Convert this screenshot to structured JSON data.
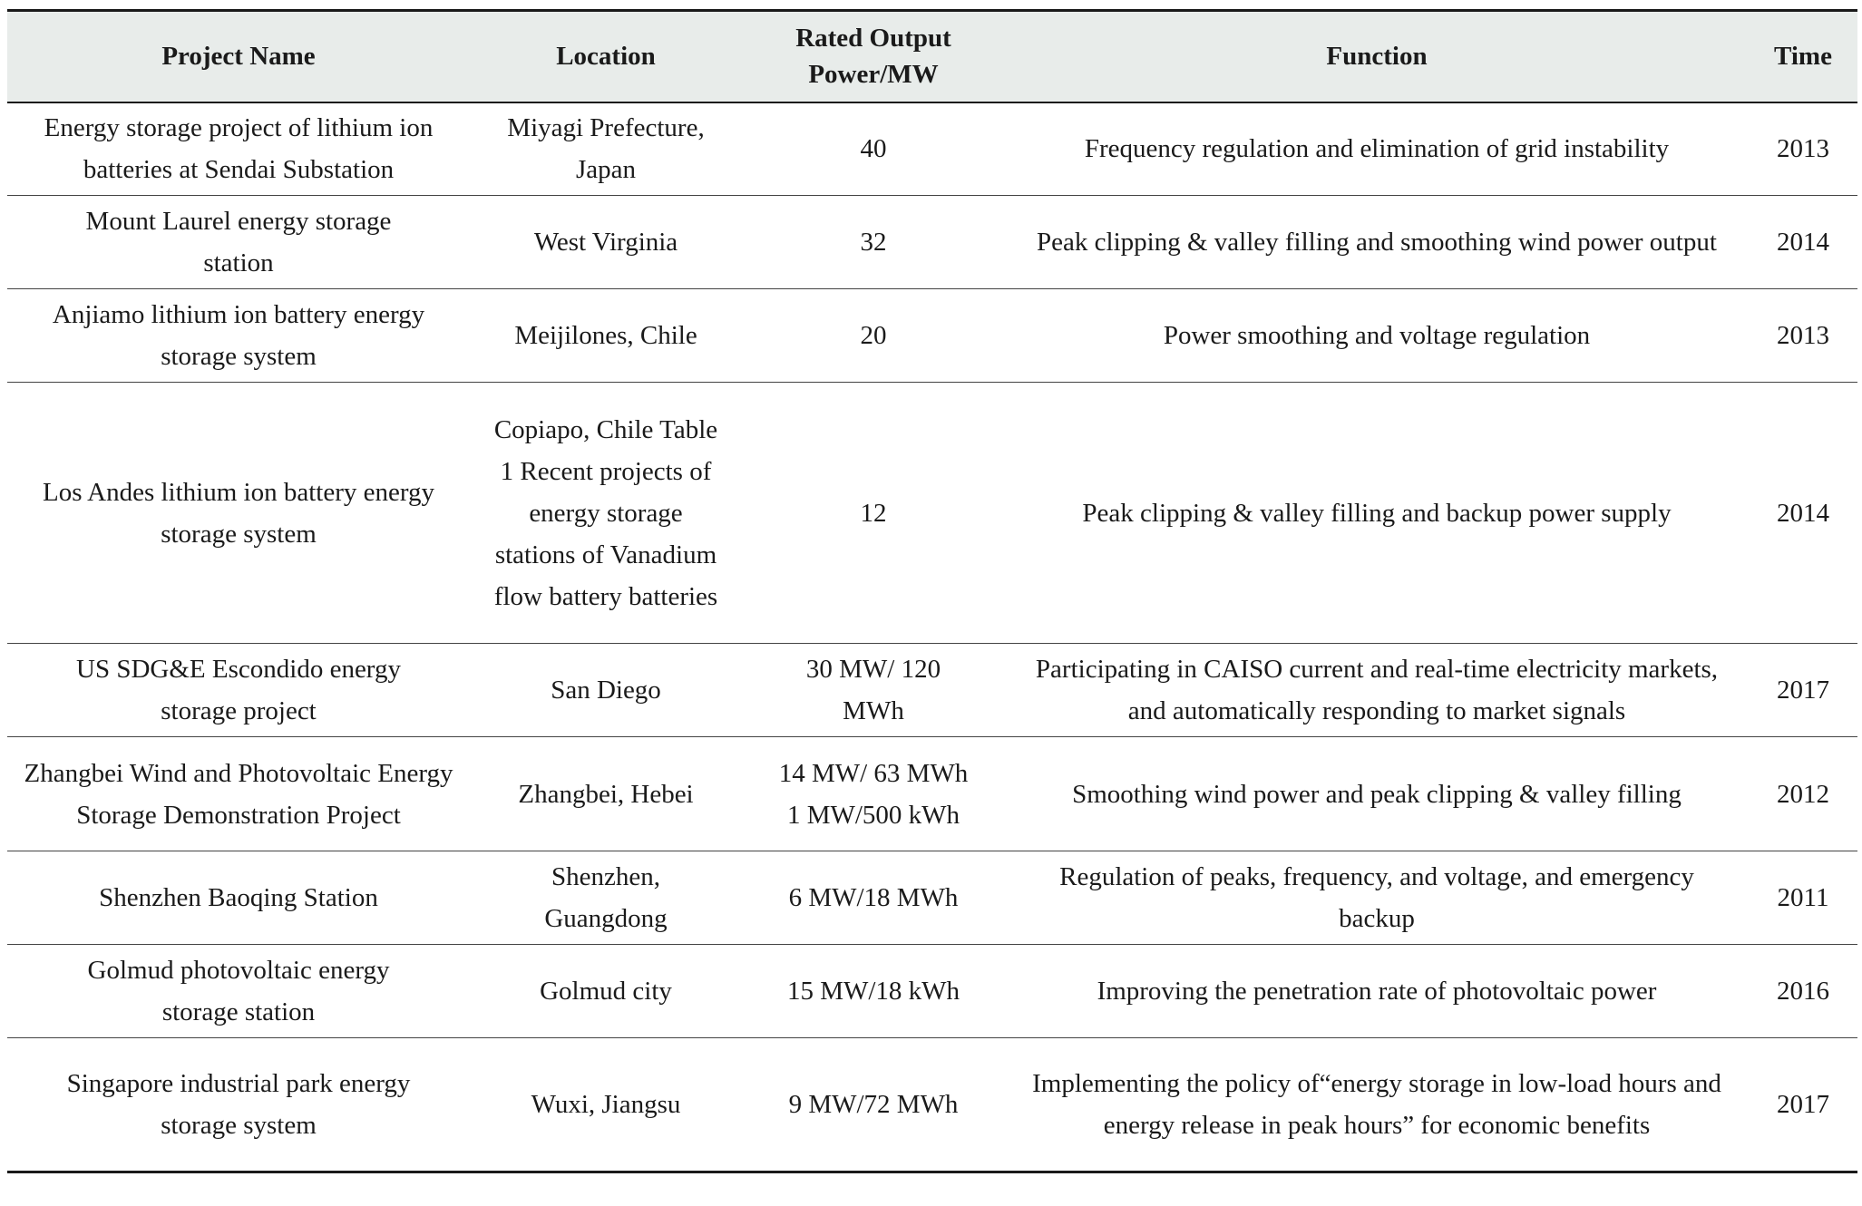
{
  "table": {
    "headers": {
      "project_name": "Project Name",
      "location": "Location",
      "rated_output": "Rated Output Power/MW",
      "function": "Function",
      "time": "Time"
    },
    "rows": [
      {
        "project_name": "Energy storage project of lithium ion batteries at Sendai Substation",
        "location": "Miyagi Prefecture, Japan",
        "rated_output": "40",
        "function": "Frequency regulation and elimination of grid instability",
        "time": "2013"
      },
      {
        "project_name": "Mount Laurel energy storage station",
        "location": "West Virginia",
        "rated_output": "32",
        "function": "Peak clipping & valley filling and smoothing wind power output",
        "time": "2014"
      },
      {
        "project_name": "Anjiamo lithium ion battery energy storage system",
        "location": "Meijilones, Chile",
        "rated_output": "20",
        "function": "Power smoothing and voltage regulation",
        "time": "2013"
      },
      {
        "project_name": "Los Andes lithium ion battery energy storage system",
        "location": "Copiapo, Chile Table 1 Recent projects of energy storage stations of Vanadium flow battery batteries",
        "rated_output": "12",
        "function": "Peak clipping & valley filling and backup power supply",
        "time": "2014"
      },
      {
        "project_name": "US SDG&E Escondido energy storage project",
        "location": "San Diego",
        "rated_output": "30 MW/ 120 MWh",
        "function": "Participating in CAISO current and real-time electricity markets, and automatically responding to market signals",
        "time": "2017"
      },
      {
        "project_name": "Zhangbei Wind and Photovoltaic Energy Storage Demonstration Project",
        "location": "Zhangbei, Hebei",
        "rated_output": "14 MW/ 63 MWh\n1 MW/500 kWh",
        "function": "Smoothing wind power and peak clipping & valley filling",
        "time": "2012"
      },
      {
        "project_name": "Shenzhen Baoqing Station",
        "location": "Shenzhen, Guangdong",
        "rated_output": "6 MW/18 MWh",
        "function": "Regulation of peaks, frequency, and voltage, and emergency backup",
        "time": "2011"
      },
      {
        "project_name": "Golmud photovoltaic energy storage station",
        "location": "Golmud city",
        "rated_output": "15 MW/18 kWh",
        "function": "Improving the penetration rate of photovoltaic power",
        "time": "2016"
      },
      {
        "project_name": "Singapore industrial park energy storage system",
        "location": "Wuxi, Jiangsu",
        "rated_output": "9 MW/72 MWh",
        "function": "Implementing the policy of“energy storage in low-load hours and energy release in peak hours” for economic benefits",
        "time": "2017"
      }
    ]
  }
}
